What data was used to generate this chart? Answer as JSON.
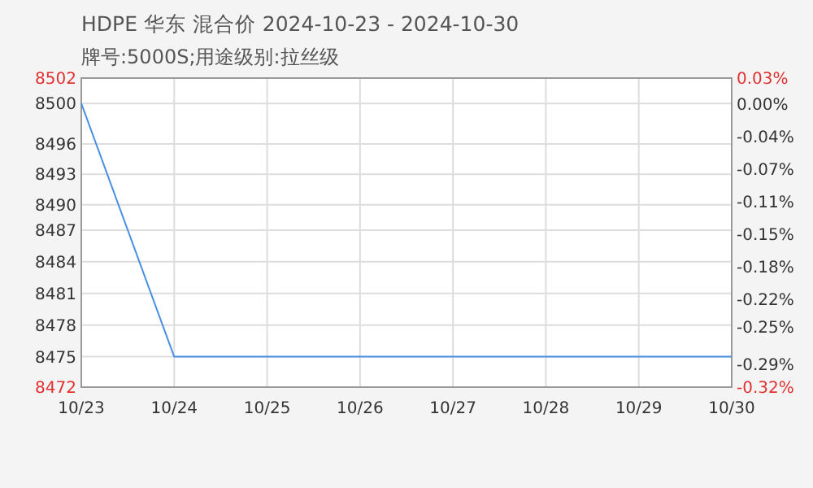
{
  "chart_data": {
    "type": "line",
    "title": "HDPE 华东 混合价 2024-10-23 - 2024-10-30",
    "subtitle": "牌号:5000S;用途级别:拉丝级",
    "categories": [
      "10/23",
      "10/24",
      "10/25",
      "10/26",
      "10/27",
      "10/28",
      "10/29",
      "10/30"
    ],
    "series": [
      {
        "color": "#4a90e2",
        "values": [
          8500,
          8475,
          8475,
          8475,
          8475,
          8475,
          8475,
          8475
        ]
      }
    ],
    "ylim": [
      8472,
      8502.5
    ],
    "yticks": [
      8472,
      {
        "value": 8475,
        "label": "8475"
      },
      {
        "value": 8478.125,
        "label": "8478"
      },
      {
        "value": 8481.25,
        "label": "8481"
      },
      {
        "value": 8484.375,
        "label": "8484"
      },
      {
        "value": 8487.5,
        "label": "8487"
      },
      8490,
      8493,
      8496,
      {
        "value": 8500,
        "label": "8500"
      },
      {
        "value": 8502.5,
        "label": "8502"
      }
    ],
    "y2lim": [
      -0.32,
      0.0294
    ],
    "y2ticks": [
      {
        "value": -0.32,
        "label": "-0.32%"
      },
      {
        "value": -0.294,
        "label": "-0.29%"
      },
      {
        "value": -0.252,
        "label": "-0.25%"
      },
      {
        "value": -0.221,
        "label": "-0.22%"
      },
      {
        "value": -0.184,
        "label": "-0.18%"
      },
      {
        "value": -0.147,
        "label": "-0.15%"
      },
      {
        "value": -0.11,
        "label": "-0.11%"
      },
      {
        "value": -0.0735,
        "label": "-0.07%"
      },
      {
        "value": -0.0368,
        "label": "-0.04%"
      },
      {
        "value": 0,
        "label": "0.00%"
      },
      {
        "value": 0.0294,
        "label": "0.03%"
      }
    ],
    "grid": true,
    "marker": "none",
    "line_style": "solid"
  }
}
